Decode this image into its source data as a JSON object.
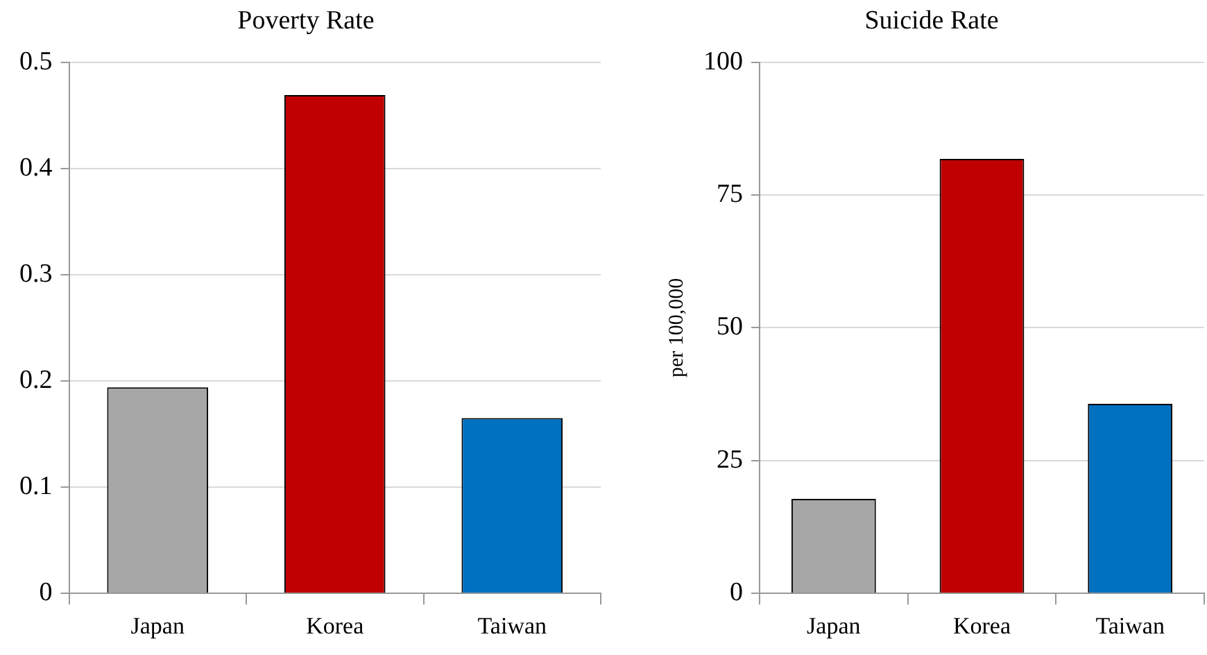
{
  "chart_data": [
    {
      "type": "bar",
      "title": "Poverty Rate",
      "categories": [
        "Japan",
        "Korea",
        "Taiwan"
      ],
      "values": [
        0.194,
        0.469,
        0.165
      ],
      "colors": [
        "#a6a6a6",
        "#c00000",
        "#0070c0"
      ],
      "ylim": [
        0,
        0.5
      ],
      "yticks": [
        0,
        0.1,
        0.2,
        0.3,
        0.4,
        0.5
      ],
      "grid": "y"
    },
    {
      "type": "bar",
      "title": "Suicide Rate",
      "ylabel": "per 100,000",
      "categories": [
        "Japan",
        "Korea",
        "Taiwan"
      ],
      "values": [
        17.8,
        81.8,
        35.7
      ],
      "colors": [
        "#a6a6a6",
        "#c00000",
        "#0070c0"
      ],
      "ylim": [
        0,
        100
      ],
      "yticks": [
        0,
        25,
        50,
        75,
        100
      ],
      "grid": "y"
    }
  ]
}
